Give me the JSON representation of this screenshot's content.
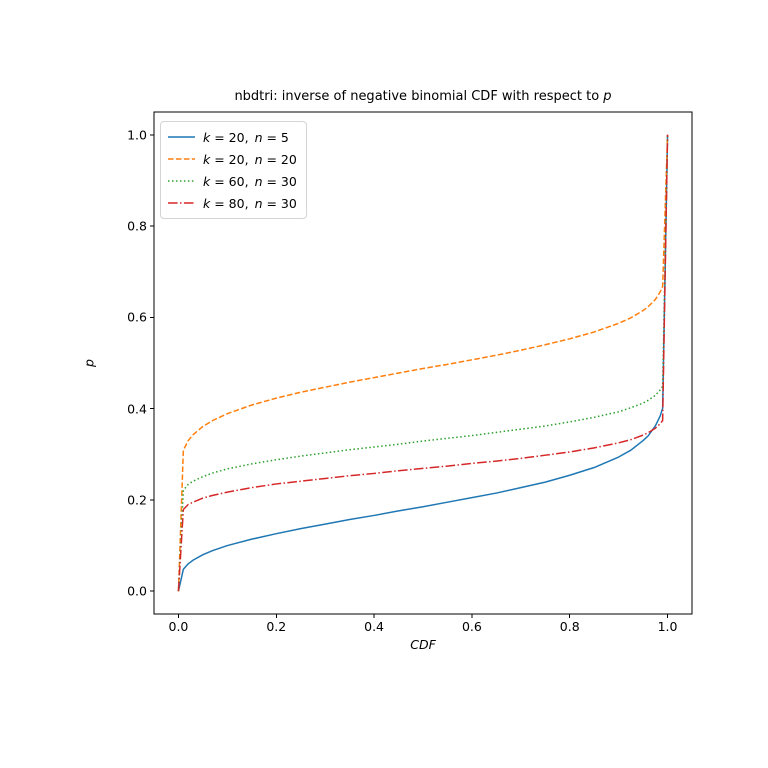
{
  "title": {
    "text": "nbdtri: inverse of negative binomial CDF with respect to ",
    "var": "p"
  },
  "legend": {
    "entries": [
      {
        "part1": "k = 20,",
        "part2": "n = 5",
        "color": "#1f77b4",
        "style": "solid"
      },
      {
        "part1": "k = 20,",
        "part2": "n = 20",
        "color": "#ff7f0e",
        "style": "dashed"
      },
      {
        "part1": "k = 60,",
        "part2": "n = 30",
        "color": "#2ca02c",
        "style": "dotted"
      },
      {
        "part1": "k = 80,",
        "part2": "n = 30",
        "color": "#d62728",
        "style": "dashdot"
      }
    ]
  },
  "chart_data": {
    "type": "line",
    "title": "nbdtri: inverse of negative binomial CDF with respect to p",
    "xlabel": "CDF",
    "ylabel": "p",
    "xlim": [
      0,
      1
    ],
    "ylim": [
      0,
      1
    ],
    "grid": false,
    "legend_position": "upper left",
    "background_color": "#ffffff",
    "spine_color": "#000000",
    "xtick_values": [
      0.0,
      0.2,
      0.4,
      0.6,
      0.8,
      1.0
    ],
    "xtick_labels": [
      "0.0",
      "0.2",
      "0.4",
      "0.6",
      "0.8",
      "1.0"
    ],
    "ytick_values": [
      0.0,
      0.2,
      0.4,
      0.6,
      0.8,
      1.0
    ],
    "ytick_labels": [
      "0.0",
      "0.2",
      "0.4",
      "0.6",
      "0.8",
      "1.0"
    ],
    "x": [
      0,
      0.01,
      0.02,
      0.03,
      0.05,
      0.07,
      0.1,
      0.15,
      0.2,
      0.25,
      0.3,
      0.35,
      0.4,
      0.45,
      0.5,
      0.55,
      0.6,
      0.65,
      0.7,
      0.75,
      0.8,
      0.85,
      0.9,
      0.925,
      0.95,
      0.96,
      0.975,
      0.985,
      0.99,
      1.0
    ],
    "series": [
      {
        "name": "k = 20, n = 5",
        "color": "#1f77b4",
        "style": "solid",
        "values": [
          0,
          0.048,
          0.06,
          0.068,
          0.08,
          0.089,
          0.1,
          0.114,
          0.126,
          0.137,
          0.147,
          0.157,
          0.166,
          0.176,
          0.185,
          0.195,
          0.205,
          0.215,
          0.227,
          0.239,
          0.254,
          0.271,
          0.294,
          0.309,
          0.33,
          0.34,
          0.362,
          0.384,
          0.401,
          1.0
        ]
      },
      {
        "name": "k = 20, n = 20",
        "color": "#ff7f0e",
        "style": "dashed",
        "values": [
          0,
          0.309,
          0.33,
          0.343,
          0.361,
          0.374,
          0.389,
          0.408,
          0.423,
          0.436,
          0.447,
          0.458,
          0.468,
          0.478,
          0.488,
          0.497,
          0.507,
          0.517,
          0.528,
          0.54,
          0.553,
          0.568,
          0.587,
          0.599,
          0.615,
          0.623,
          0.639,
          0.656,
          0.668,
          1.0
        ]
      },
      {
        "name": "k = 60, n = 30",
        "color": "#2ca02c",
        "style": "dotted",
        "values": [
          0,
          0.221,
          0.234,
          0.241,
          0.251,
          0.259,
          0.268,
          0.279,
          0.288,
          0.296,
          0.303,
          0.31,
          0.316,
          0.322,
          0.329,
          0.335,
          0.341,
          0.348,
          0.355,
          0.362,
          0.371,
          0.381,
          0.393,
          0.402,
          0.412,
          0.418,
          0.429,
          0.441,
          0.449,
          1.0
        ]
      },
      {
        "name": "k = 80, n = 30",
        "color": "#d62728",
        "style": "dashdot",
        "values": [
          0,
          0.179,
          0.19,
          0.195,
          0.204,
          0.21,
          0.217,
          0.227,
          0.235,
          0.241,
          0.247,
          0.253,
          0.258,
          0.264,
          0.269,
          0.274,
          0.28,
          0.285,
          0.291,
          0.298,
          0.305,
          0.314,
          0.325,
          0.332,
          0.342,
          0.347,
          0.357,
          0.367,
          0.374,
          1.0
        ]
      }
    ]
  }
}
